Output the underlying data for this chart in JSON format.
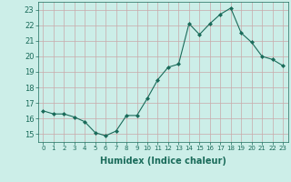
{
  "x": [
    0,
    1,
    2,
    3,
    4,
    5,
    6,
    7,
    8,
    9,
    10,
    11,
    12,
    13,
    14,
    15,
    16,
    17,
    18,
    19,
    20,
    21,
    22,
    23
  ],
  "y": [
    16.5,
    16.3,
    16.3,
    16.1,
    15.8,
    15.1,
    14.9,
    15.2,
    16.2,
    16.2,
    17.3,
    18.5,
    19.3,
    19.5,
    22.1,
    21.4,
    22.1,
    22.7,
    23.1,
    21.5,
    20.9,
    20.0,
    19.8,
    19.4
  ],
  "line_color": "#1a6b5a",
  "marker": "D",
  "marker_size": 2,
  "bg_color": "#cceee8",
  "grid_color": "#c9a9a9",
  "xlabel": "Humidex (Indice chaleur)",
  "ylim": [
    14.5,
    23.5
  ],
  "xlim": [
    -0.5,
    23.5
  ],
  "yticks": [
    15,
    16,
    17,
    18,
    19,
    20,
    21,
    22,
    23
  ],
  "xticks": [
    0,
    1,
    2,
    3,
    4,
    5,
    6,
    7,
    8,
    9,
    10,
    11,
    12,
    13,
    14,
    15,
    16,
    17,
    18,
    19,
    20,
    21,
    22,
    23
  ],
  "xtick_labels": [
    "0",
    "1",
    "2",
    "3",
    "4",
    "5",
    "6",
    "7",
    "8",
    "9",
    "10",
    "11",
    "12",
    "13",
    "14",
    "15",
    "16",
    "17",
    "18",
    "19",
    "20",
    "21",
    "22",
    "23"
  ],
  "tick_color": "#1a6b5a",
  "xlabel_fontsize": 7,
  "ytick_fontsize": 6,
  "xtick_fontsize": 5
}
